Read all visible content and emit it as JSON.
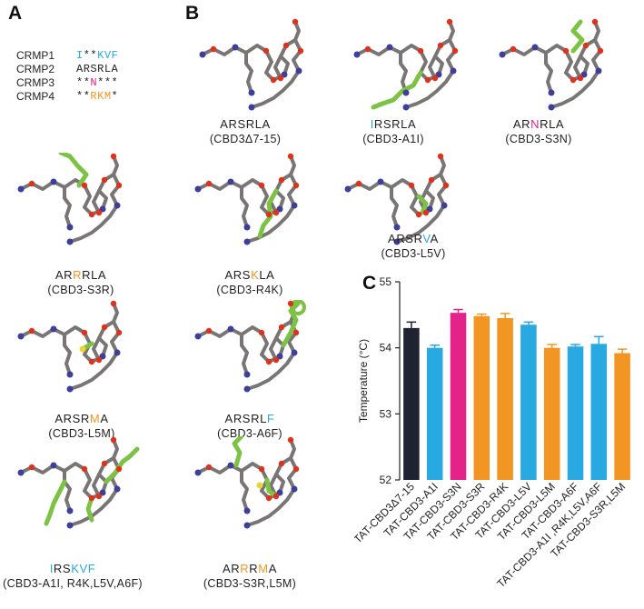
{
  "panels": {
    "a": "A",
    "b": "B",
    "c": "C"
  },
  "alignment": [
    {
      "name": "CRMP1",
      "residues": [
        {
          "t": "I",
          "c": "cyan"
        },
        {
          "t": "*",
          "c": "black"
        },
        {
          "t": "*",
          "c": "black"
        },
        {
          "t": "K",
          "c": "cyan"
        },
        {
          "t": "V",
          "c": "cyan"
        },
        {
          "t": "F",
          "c": "cyan"
        }
      ]
    },
    {
      "name": "CRMP2",
      "residues": [
        {
          "t": "A",
          "c": "black"
        },
        {
          "t": "R",
          "c": "black"
        },
        {
          "t": "S",
          "c": "black"
        },
        {
          "t": "R",
          "c": "black"
        },
        {
          "t": "L",
          "c": "black"
        },
        {
          "t": "A",
          "c": "black"
        }
      ]
    },
    {
      "name": "CRMP3",
      "residues": [
        {
          "t": "*",
          "c": "black"
        },
        {
          "t": "*",
          "c": "black"
        },
        {
          "t": "N",
          "c": "magenta"
        },
        {
          "t": "*",
          "c": "black"
        },
        {
          "t": "*",
          "c": "black"
        },
        {
          "t": "*",
          "c": "black"
        }
      ]
    },
    {
      "name": "CRMP4",
      "residues": [
        {
          "t": "*",
          "c": "black"
        },
        {
          "t": "*",
          "c": "black"
        },
        {
          "t": "R",
          "c": "orange"
        },
        {
          "t": "K",
          "c": "orange"
        },
        {
          "t": "M",
          "c": "orange"
        },
        {
          "t": "*",
          "c": "black"
        }
      ]
    }
  ],
  "structures": [
    {
      "seq": [
        {
          "t": "ARSRLA",
          "c": "black"
        }
      ],
      "name": "(CBD3Δ7-15)",
      "green": "none"
    },
    {
      "seq": [
        {
          "t": "I",
          "c": "cyan"
        },
        {
          "t": "RSRLA",
          "c": "black"
        }
      ],
      "name": "(CBD3-A1I)",
      "green": "long"
    },
    {
      "seq": [
        {
          "t": "AR",
          "c": "black"
        },
        {
          "t": "N",
          "c": "magenta"
        },
        {
          "t": "RLA",
          "c": "black"
        }
      ],
      "name": "(CBD3-S3N)",
      "green": "top"
    },
    {
      "seq": [
        {
          "t": "AR",
          "c": "black"
        },
        {
          "t": "R",
          "c": "orange"
        },
        {
          "t": "RLA",
          "c": "black"
        }
      ],
      "name": "(CBD3-S3R)",
      "green": "top-long"
    },
    {
      "seq": [
        {
          "t": "ARS",
          "c": "black"
        },
        {
          "t": "K",
          "c": "orange"
        },
        {
          "t": "LA",
          "c": "black"
        }
      ],
      "name": "(CBD3-R4K)",
      "green": "mid"
    },
    {
      "seq": [
        {
          "t": "ARSR",
          "c": "black"
        },
        {
          "t": "V",
          "c": "cyan"
        },
        {
          "t": "A",
          "c": "black"
        }
      ],
      "name": "(CBD3-L5V)",
      "green": "small"
    },
    {
      "seq": [
        {
          "t": "ARSR",
          "c": "black"
        },
        {
          "t": "M",
          "c": "orange"
        },
        {
          "t": "A",
          "c": "black"
        }
      ],
      "name": "(CBD3-L5M)",
      "green": "yellow"
    },
    {
      "seq": [
        {
          "t": "ARSRL",
          "c": "black"
        },
        {
          "t": "F",
          "c": "cyan"
        }
      ],
      "name": "(CBD3-A6F)",
      "green": "ring"
    },
    {
      "seq": [
        {
          "t": "I",
          "c": "cyan"
        },
        {
          "t": "RS",
          "c": "black"
        },
        {
          "t": "KVF",
          "c": "cyan"
        }
      ],
      "name": "(CBD3-A1I, R4K,L5V,A6F)",
      "green": "multi"
    },
    {
      "seq": [
        {
          "t": "AR",
          "c": "black"
        },
        {
          "t": "R",
          "c": "orange"
        },
        {
          "t": "R",
          "c": "black"
        },
        {
          "t": "M",
          "c": "orange"
        },
        {
          "t": "A",
          "c": "black"
        }
      ],
      "name": "(CBD3-S3R,L5M)",
      "green": "double"
    }
  ],
  "colors": {
    "cyan": "#29a9e1",
    "magenta": "#e5218a",
    "orange": "#f39522",
    "black": "#222222",
    "navy": "#1f2230",
    "carbon": "#7a7575",
    "nitrogen": "#3d3f9a",
    "oxygen": "#e0311a",
    "green": "#7cc243",
    "sulfur": "#e8d631"
  },
  "chart_data": {
    "type": "bar",
    "ylabel": "Temperature (°C)",
    "ylim": [
      52,
      55
    ],
    "yticks": [
      52,
      53,
      54,
      55
    ],
    "categories": [
      "TAT-CBD3Δ7-15",
      "TAT-CBD3-A1I",
      "TAT-CBD3-S3N",
      "TAT-CBD3-S3R",
      "TAT-CBD3-R4K",
      "TAT-CBD3-L5V",
      "TAT-CBD3-L5M",
      "TAT-CBD3-A6F",
      "TAT-CBD3-A1I ,R4K,L5V,A6F",
      "TAT-CBD3-S3R,L5M"
    ],
    "values": [
      54.3,
      54.0,
      54.53,
      54.48,
      54.45,
      54.35,
      54.0,
      54.02,
      54.06,
      53.92
    ],
    "errors": [
      0.09,
      0.04,
      0.05,
      0.03,
      0.07,
      0.04,
      0.05,
      0.03,
      0.11,
      0.06
    ],
    "bar_colors": [
      "navy",
      "cyan",
      "magenta",
      "orange",
      "orange",
      "cyan",
      "orange",
      "cyan",
      "cyan",
      "orange"
    ]
  }
}
